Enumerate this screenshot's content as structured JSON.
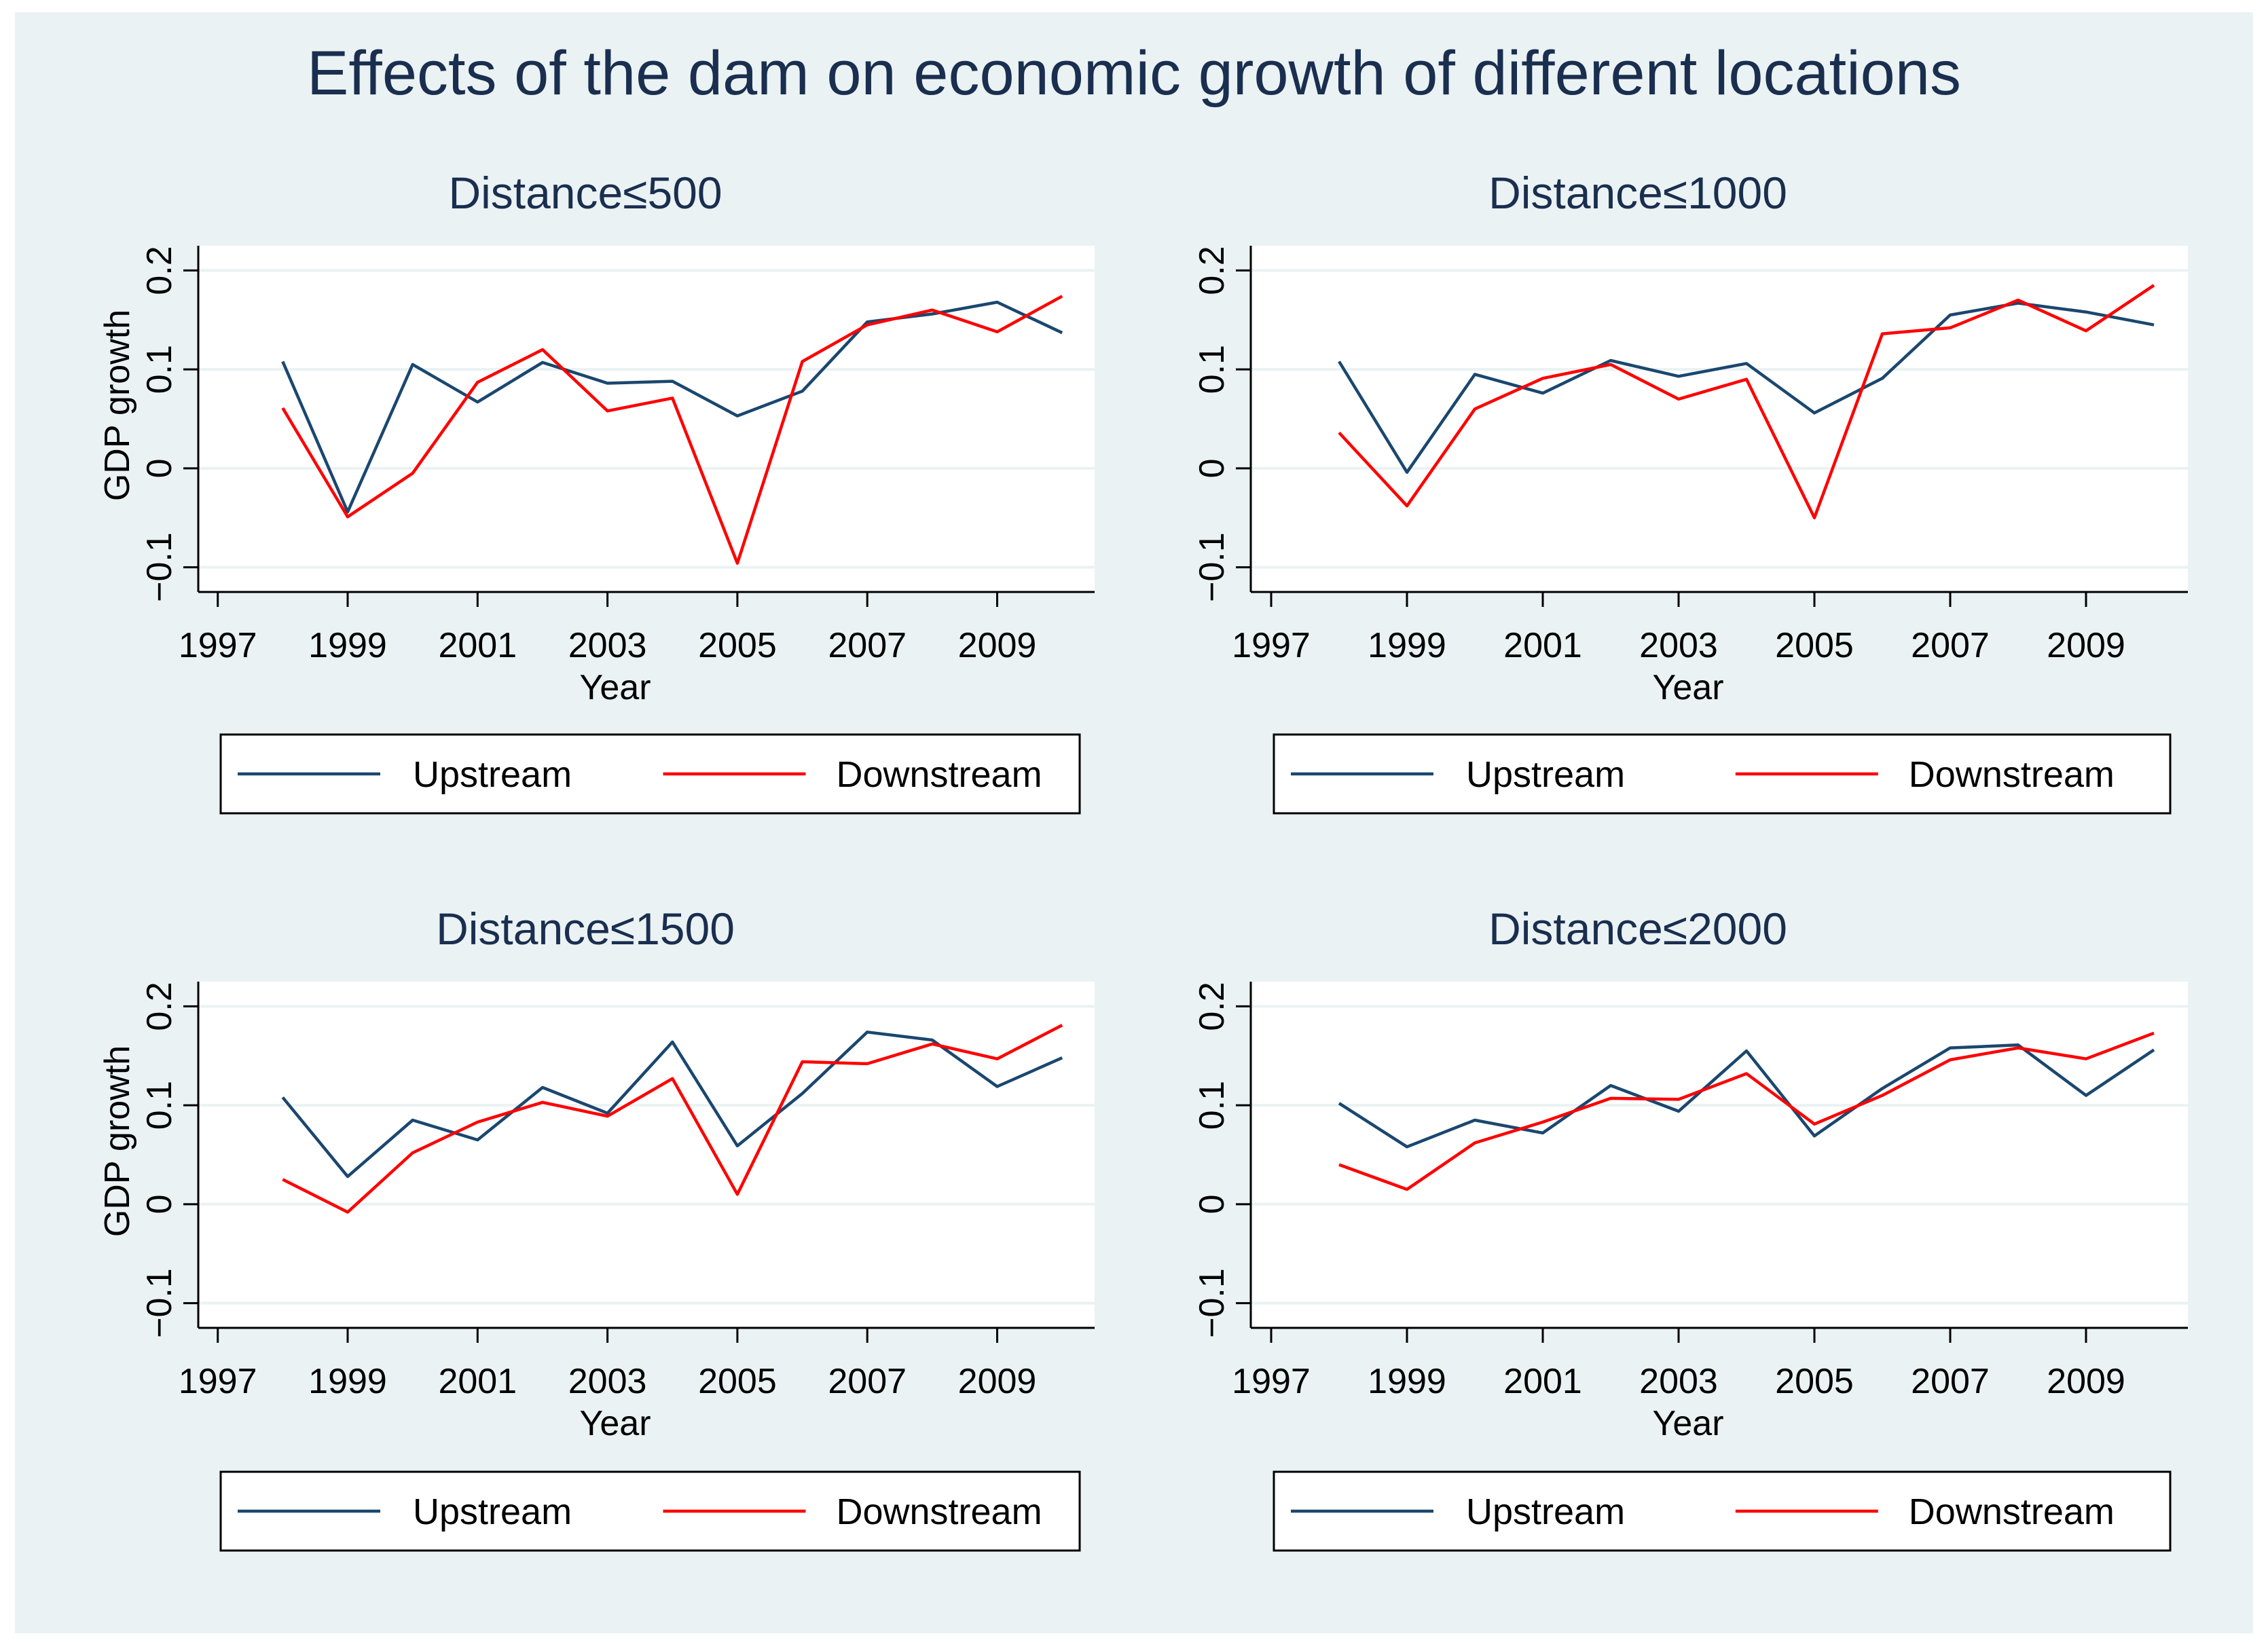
{
  "title": "Effects of the dam on economic growth of different locations",
  "colors": {
    "upstream": "#1a476f",
    "downstream": "#ff0000",
    "background": "#eaf2f3",
    "grid": "#eaf2f3",
    "text": "#1a2e4f",
    "axis": "#000000"
  },
  "chart_data": [
    {
      "type": "line",
      "title": "Distance≤500",
      "xlabel": "Year",
      "ylabel": "GDP growth",
      "xlim": [
        1996.7,
        2010.5
      ],
      "ylim": [
        -0.125,
        0.225
      ],
      "x_ticks": [
        "1997",
        "1999",
        "2001",
        "2003",
        "2005",
        "2007",
        "2009"
      ],
      "y_ticks": [
        "−0.1",
        "0",
        "0.1",
        "0.2"
      ],
      "x": [
        1998,
        1999,
        2000,
        2001,
        2002,
        2003,
        2004,
        2005,
        2006,
        2007,
        2008,
        2009,
        2010
      ],
      "series": [
        {
          "name": "Upstream",
          "values": [
            0.108,
            -0.044,
            0.105,
            0.067,
            0.107,
            0.086,
            0.088,
            0.053,
            0.078,
            0.148,
            0.156,
            0.168,
            0.137
          ]
        },
        {
          "name": "Downstream",
          "values": [
            0.061,
            -0.049,
            -0.005,
            0.087,
            0.12,
            0.058,
            0.071,
            -0.096,
            0.108,
            0.145,
            0.16,
            0.138,
            0.174
          ]
        }
      ],
      "legend": [
        "Upstream",
        "Downstream"
      ]
    },
    {
      "type": "line",
      "title": "Distance≤1000",
      "xlabel": "Year",
      "ylabel": "",
      "xlim": [
        1996.7,
        2010.5
      ],
      "ylim": [
        -0.125,
        0.225
      ],
      "x_ticks": [
        "1997",
        "1999",
        "2001",
        "2003",
        "2005",
        "2007",
        "2009"
      ],
      "y_ticks": [
        "−0.1",
        "0",
        "0.1",
        "0.2"
      ],
      "x": [
        1998,
        1999,
        2000,
        2001,
        2002,
        2003,
        2004,
        2005,
        2006,
        2007,
        2008,
        2009,
        2010
      ],
      "series": [
        {
          "name": "Upstream",
          "values": [
            0.108,
            -0.004,
            0.095,
            0.076,
            0.109,
            0.093,
            0.106,
            0.056,
            0.091,
            0.155,
            0.167,
            0.158,
            0.145
          ]
        },
        {
          "name": "Downstream",
          "values": [
            0.036,
            -0.038,
            0.06,
            0.091,
            0.105,
            0.07,
            0.09,
            -0.05,
            0.136,
            0.142,
            0.17,
            0.139,
            0.185
          ]
        }
      ],
      "legend": [
        "Upstream",
        "Downstream"
      ]
    },
    {
      "type": "line",
      "title": "Distance≤1500",
      "xlabel": "Year",
      "ylabel": "GDP growth",
      "xlim": [
        1996.7,
        2010.5
      ],
      "ylim": [
        -0.125,
        0.225
      ],
      "x_ticks": [
        "1997",
        "1999",
        "2001",
        "2003",
        "2005",
        "2007",
        "2009"
      ],
      "y_ticks": [
        "−0.1",
        "0",
        "0.1",
        "0.2"
      ],
      "x": [
        1998,
        1999,
        2000,
        2001,
        2002,
        2003,
        2004,
        2005,
        2006,
        2007,
        2008,
        2009,
        2010
      ],
      "series": [
        {
          "name": "Upstream",
          "values": [
            0.108,
            0.028,
            0.085,
            0.065,
            0.118,
            0.092,
            0.164,
            0.059,
            0.112,
            0.174,
            0.166,
            0.119,
            0.148
          ]
        },
        {
          "name": "Downstream",
          "values": [
            0.025,
            -0.008,
            0.052,
            0.083,
            0.103,
            0.089,
            0.127,
            0.01,
            0.144,
            0.142,
            0.162,
            0.147,
            0.181
          ]
        }
      ],
      "legend": [
        "Upstream",
        "Downstream"
      ]
    },
    {
      "type": "line",
      "title": "Distance≤2000",
      "xlabel": "Year",
      "ylabel": "",
      "xlim": [
        1996.7,
        2010.5
      ],
      "ylim": [
        -0.125,
        0.225
      ],
      "x_ticks": [
        "1997",
        "1999",
        "2001",
        "2003",
        "2005",
        "2007",
        "2009"
      ],
      "y_ticks": [
        "−0.1",
        "0",
        "0.1",
        "0.2"
      ],
      "x": [
        1998,
        1999,
        2000,
        2001,
        2002,
        2003,
        2004,
        2005,
        2006,
        2007,
        2008,
        2009,
        2010
      ],
      "series": [
        {
          "name": "Upstream",
          "values": [
            0.102,
            0.058,
            0.085,
            0.072,
            0.12,
            0.094,
            0.155,
            0.069,
            0.117,
            0.158,
            0.161,
            0.11,
            0.156
          ]
        },
        {
          "name": "Downstream",
          "values": [
            0.04,
            0.015,
            0.062,
            0.083,
            0.107,
            0.106,
            0.132,
            0.081,
            0.11,
            0.146,
            0.158,
            0.147,
            0.173
          ]
        }
      ],
      "legend": [
        "Upstream",
        "Downstream"
      ]
    }
  ]
}
